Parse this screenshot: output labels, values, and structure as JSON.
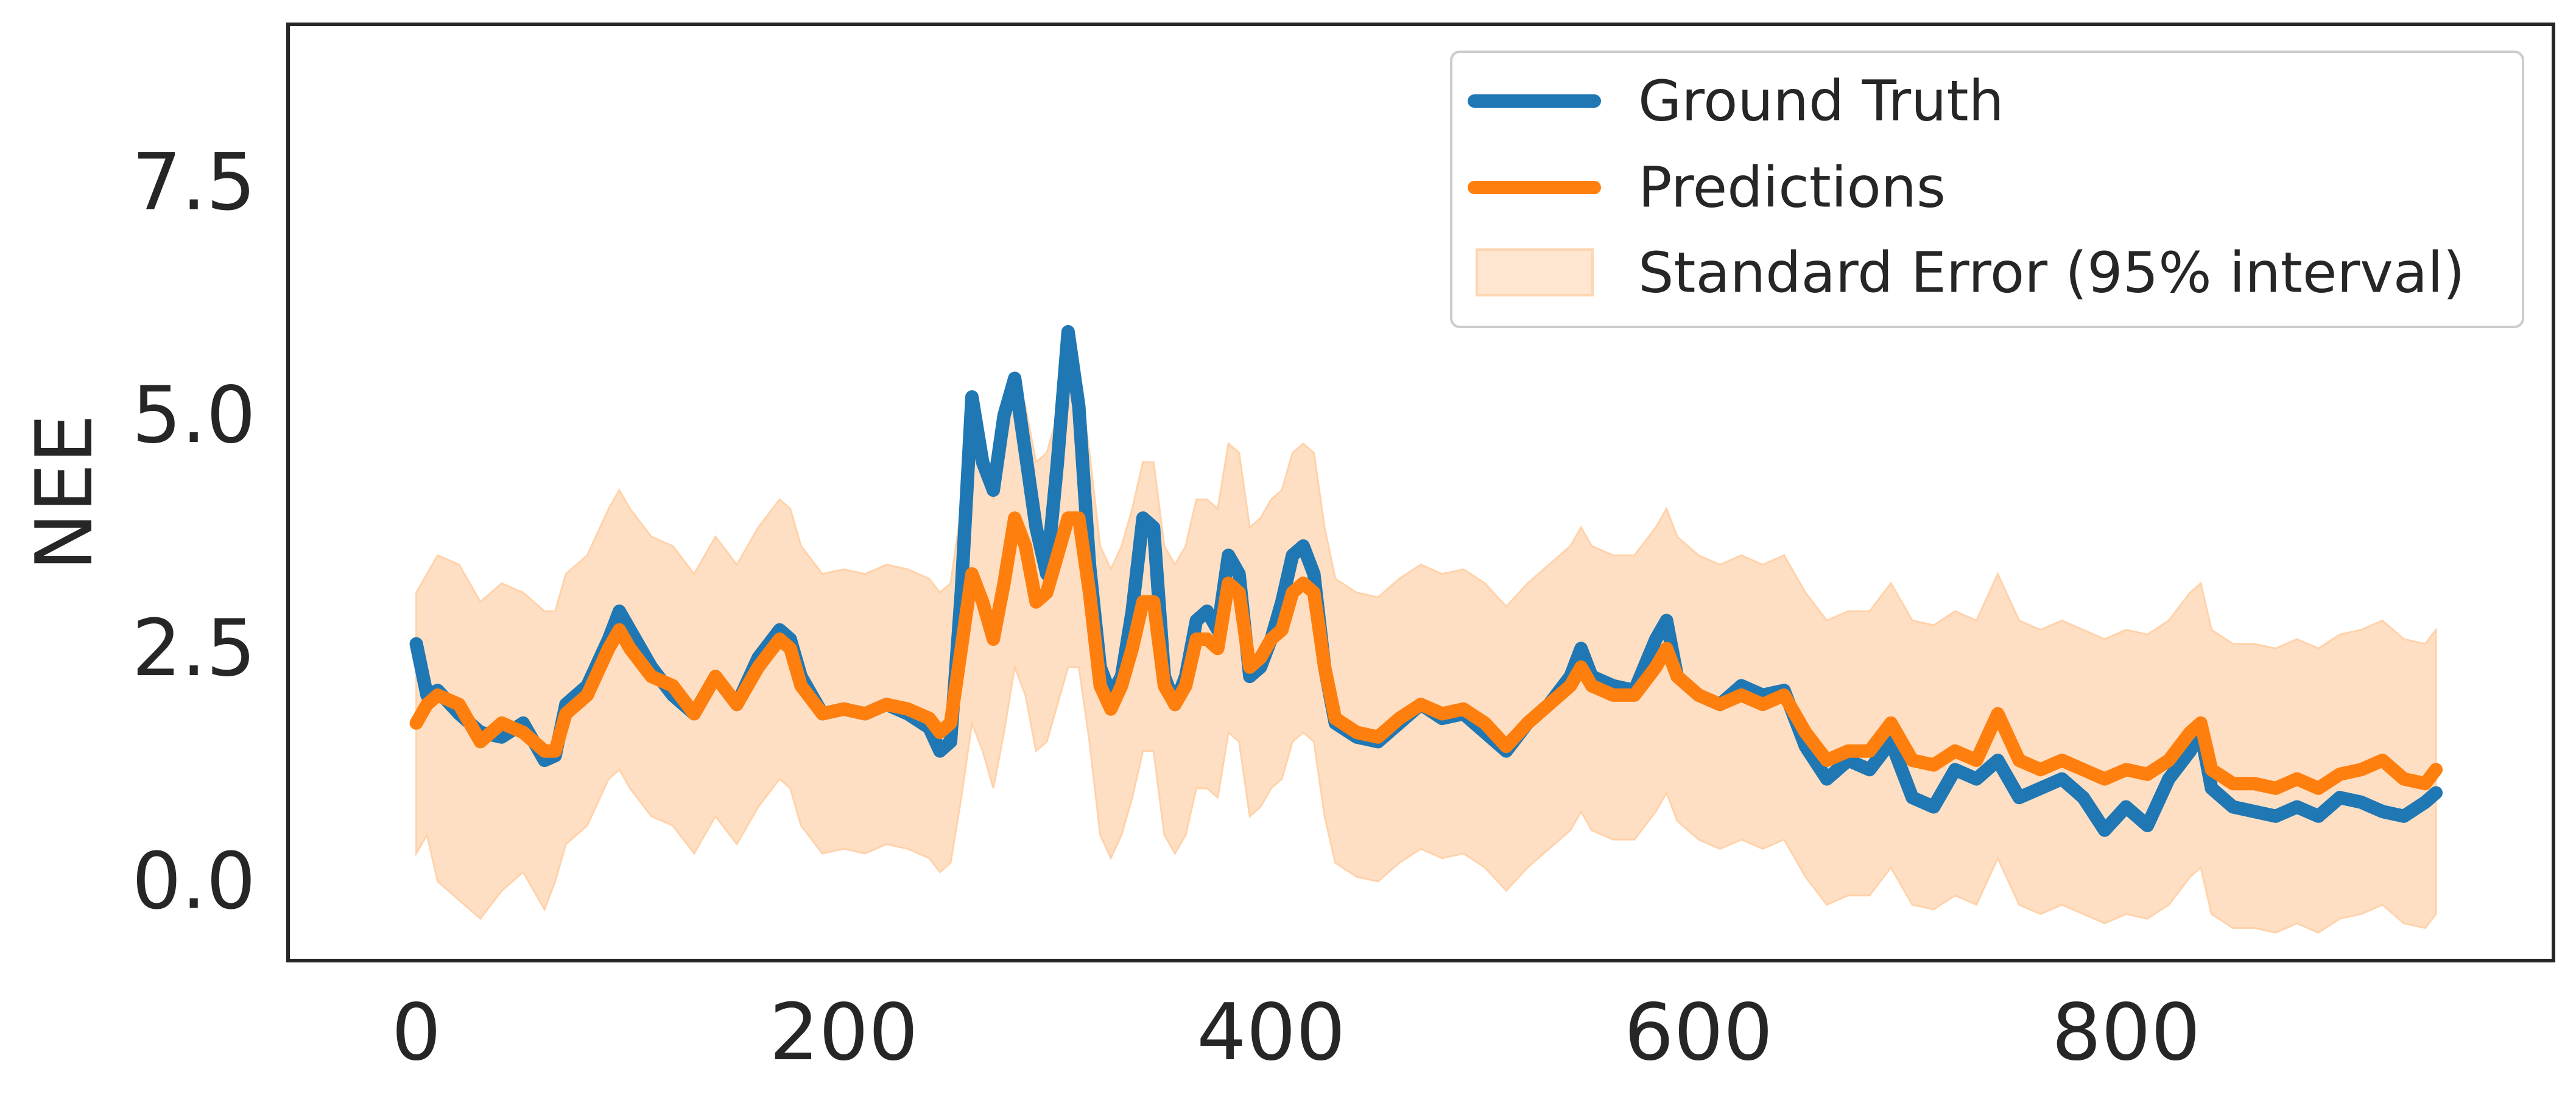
{
  "chart_data": {
    "type": "line",
    "title": "",
    "xlabel": "",
    "ylabel": "NEE",
    "xlim": [
      -60,
      1000
    ],
    "ylim": [
      -0.85,
      9.2
    ],
    "xticks": [
      0,
      200,
      400,
      600,
      800
    ],
    "xtick_labels": [
      "0",
      "200",
      "400",
      "600",
      "800"
    ],
    "yticks": [
      0.0,
      2.5,
      5.0,
      7.5
    ],
    "ytick_labels": [
      "0.0",
      "2.5",
      "5.0",
      "7.5"
    ],
    "grid": false,
    "legend_position": "top-right",
    "colors": {
      "ground_truth": "#1f77b4",
      "predictions": "#ff7f0e",
      "interval_fill": "#ffd2aa",
      "axes": "#262626"
    },
    "series": [
      {
        "name": "Ground Truth",
        "x": [
          0,
          5,
          10,
          20,
          30,
          40,
          50,
          60,
          65,
          70,
          80,
          90,
          95,
          100,
          110,
          120,
          130,
          140,
          150,
          160,
          170,
          175,
          180,
          190,
          200,
          210,
          220,
          230,
          240,
          245,
          250,
          255,
          260,
          265,
          270,
          275,
          280,
          285,
          290,
          295,
          300,
          305,
          310,
          315,
          320,
          325,
          330,
          335,
          340,
          345,
          350,
          355,
          360,
          365,
          370,
          375,
          380,
          385,
          390,
          395,
          400,
          405,
          410,
          415,
          420,
          425,
          430,
          440,
          450,
          460,
          470,
          480,
          490,
          500,
          510,
          520,
          530,
          540,
          545,
          550,
          560,
          570,
          580,
          585,
          590,
          600,
          610,
          620,
          630,
          640,
          650,
          660,
          670,
          680,
          690,
          700,
          710,
          720,
          730,
          740,
          750,
          760,
          770,
          780,
          790,
          800,
          810,
          820,
          830,
          835,
          840,
          850,
          860,
          870,
          880,
          890,
          900,
          910,
          920,
          930,
          940,
          945
        ],
        "y": [
          2.55,
          2.0,
          2.05,
          1.8,
          1.6,
          1.55,
          1.7,
          1.3,
          1.35,
          1.9,
          2.1,
          2.6,
          2.9,
          2.7,
          2.3,
          2.0,
          1.8,
          2.2,
          1.9,
          2.4,
          2.7,
          2.6,
          2.2,
          1.8,
          1.85,
          1.8,
          1.9,
          1.8,
          1.65,
          1.4,
          1.5,
          3.1,
          5.2,
          4.5,
          4.2,
          5.0,
          5.4,
          4.6,
          3.8,
          3.3,
          4.5,
          5.9,
          5.1,
          3.4,
          2.3,
          2.0,
          2.2,
          2.9,
          3.9,
          3.8,
          2.2,
          1.9,
          2.2,
          2.8,
          2.9,
          2.7,
          3.5,
          3.3,
          2.2,
          2.3,
          2.6,
          3.0,
          3.5,
          3.6,
          3.3,
          2.3,
          1.7,
          1.55,
          1.5,
          1.7,
          1.9,
          1.75,
          1.8,
          1.6,
          1.4,
          1.7,
          1.9,
          2.2,
          2.5,
          2.2,
          2.1,
          2.05,
          2.6,
          2.8,
          2.2,
          2.0,
          1.9,
          2.1,
          2.0,
          2.05,
          1.45,
          1.1,
          1.3,
          1.2,
          1.5,
          0.9,
          0.8,
          1.2,
          1.1,
          1.3,
          0.9,
          1.0,
          1.1,
          0.9,
          0.55,
          0.8,
          0.6,
          1.1,
          1.4,
          1.6,
          1.0,
          0.8,
          0.75,
          0.7,
          0.8,
          0.7,
          0.9,
          0.85,
          0.75,
          0.7,
          0.85,
          0.95
        ]
      },
      {
        "name": "Predictions",
        "x": [
          0,
          5,
          10,
          20,
          30,
          40,
          50,
          60,
          65,
          70,
          80,
          90,
          95,
          100,
          110,
          120,
          130,
          140,
          150,
          160,
          170,
          175,
          180,
          190,
          200,
          210,
          220,
          230,
          240,
          245,
          250,
          255,
          260,
          265,
          270,
          275,
          280,
          285,
          290,
          295,
          300,
          305,
          310,
          315,
          320,
          325,
          330,
          335,
          340,
          345,
          350,
          355,
          360,
          365,
          370,
          375,
          380,
          385,
          390,
          395,
          400,
          405,
          410,
          415,
          420,
          425,
          430,
          440,
          450,
          460,
          470,
          480,
          490,
          500,
          510,
          520,
          530,
          540,
          545,
          550,
          560,
          570,
          580,
          585,
          590,
          600,
          610,
          620,
          630,
          640,
          650,
          660,
          670,
          680,
          690,
          700,
          710,
          720,
          730,
          740,
          750,
          760,
          770,
          780,
          790,
          800,
          810,
          820,
          830,
          835,
          840,
          850,
          860,
          870,
          880,
          890,
          900,
          910,
          920,
          930,
          940,
          945
        ],
        "y": [
          1.7,
          1.9,
          2.0,
          1.9,
          1.5,
          1.7,
          1.6,
          1.4,
          1.4,
          1.8,
          2.0,
          2.5,
          2.7,
          2.5,
          2.2,
          2.1,
          1.8,
          2.2,
          1.9,
          2.3,
          2.6,
          2.5,
          2.1,
          1.8,
          1.85,
          1.8,
          1.9,
          1.85,
          1.75,
          1.6,
          1.7,
          2.5,
          3.3,
          3.0,
          2.6,
          3.2,
          3.9,
          3.6,
          3.0,
          3.1,
          3.5,
          3.9,
          3.9,
          3.1,
          2.1,
          1.85,
          2.1,
          2.5,
          3.0,
          3.0,
          2.1,
          1.9,
          2.1,
          2.6,
          2.6,
          2.5,
          3.2,
          3.1,
          2.3,
          2.4,
          2.6,
          2.7,
          3.1,
          3.2,
          3.1,
          2.3,
          1.75,
          1.6,
          1.55,
          1.75,
          1.9,
          1.8,
          1.85,
          1.7,
          1.45,
          1.7,
          1.9,
          2.1,
          2.3,
          2.1,
          2.0,
          2.0,
          2.3,
          2.5,
          2.2,
          2.0,
          1.9,
          2.0,
          1.9,
          2.0,
          1.6,
          1.3,
          1.4,
          1.4,
          1.7,
          1.3,
          1.25,
          1.4,
          1.3,
          1.8,
          1.3,
          1.2,
          1.3,
          1.2,
          1.1,
          1.2,
          1.15,
          1.3,
          1.6,
          1.7,
          1.2,
          1.05,
          1.05,
          1.0,
          1.1,
          1.0,
          1.15,
          1.2,
          1.3,
          1.1,
          1.05,
          1.2
        ]
      }
    ],
    "interval": {
      "name": "Standard Error (95% interval)",
      "x": [
        0,
        5,
        10,
        20,
        30,
        40,
        50,
        60,
        65,
        70,
        80,
        90,
        95,
        100,
        110,
        120,
        130,
        140,
        150,
        160,
        170,
        175,
        180,
        190,
        200,
        210,
        220,
        230,
        240,
        245,
        250,
        255,
        260,
        265,
        270,
        275,
        280,
        285,
        290,
        295,
        300,
        305,
        310,
        315,
        320,
        325,
        330,
        335,
        340,
        345,
        350,
        355,
        360,
        365,
        370,
        375,
        380,
        385,
        390,
        395,
        400,
        405,
        410,
        415,
        420,
        425,
        430,
        440,
        450,
        460,
        470,
        480,
        490,
        500,
        510,
        520,
        530,
        540,
        545,
        550,
        560,
        570,
        580,
        585,
        590,
        600,
        610,
        620,
        630,
        640,
        650,
        660,
        670,
        680,
        690,
        700,
        710,
        720,
        730,
        740,
        750,
        760,
        770,
        780,
        790,
        800,
        810,
        820,
        830,
        835,
        840,
        850,
        860,
        870,
        880,
        890,
        900,
        910,
        920,
        930,
        940,
        945
      ],
      "lower": [
        0.3,
        0.5,
        0.0,
        -0.2,
        -0.4,
        -0.1,
        0.1,
        -0.3,
        0.0,
        0.4,
        0.6,
        1.1,
        1.2,
        1.0,
        0.7,
        0.6,
        0.3,
        0.7,
        0.4,
        0.8,
        1.1,
        1.0,
        0.6,
        0.3,
        0.35,
        0.3,
        0.4,
        0.35,
        0.25,
        0.1,
        0.2,
        0.9,
        1.7,
        1.4,
        1.0,
        1.6,
        2.3,
        2.0,
        1.4,
        1.5,
        1.9,
        2.3,
        2.3,
        1.5,
        0.5,
        0.25,
        0.5,
        0.9,
        1.4,
        1.4,
        0.5,
        0.3,
        0.5,
        1.0,
        1.0,
        0.9,
        1.6,
        1.5,
        0.7,
        0.8,
        1.0,
        1.1,
        1.5,
        1.6,
        1.5,
        0.7,
        0.2,
        0.05,
        0.0,
        0.2,
        0.35,
        0.25,
        0.3,
        0.15,
        -0.1,
        0.15,
        0.35,
        0.55,
        0.75,
        0.55,
        0.45,
        0.45,
        0.75,
        0.95,
        0.65,
        0.45,
        0.35,
        0.45,
        0.35,
        0.45,
        0.05,
        -0.25,
        -0.15,
        -0.15,
        0.15,
        -0.25,
        -0.3,
        -0.15,
        -0.25,
        0.25,
        -0.25,
        -0.35,
        -0.25,
        -0.35,
        -0.45,
        -0.35,
        -0.4,
        -0.25,
        0.05,
        0.15,
        -0.35,
        -0.5,
        -0.5,
        -0.55,
        -0.45,
        -0.55,
        -0.4,
        -0.35,
        -0.25,
        -0.45,
        -0.5,
        -0.35
      ],
      "upper": [
        3.1,
        3.3,
        3.5,
        3.4,
        3.0,
        3.2,
        3.1,
        2.9,
        2.9,
        3.3,
        3.5,
        4.0,
        4.2,
        4.0,
        3.7,
        3.6,
        3.3,
        3.7,
        3.4,
        3.8,
        4.1,
        4.0,
        3.6,
        3.3,
        3.35,
        3.3,
        3.4,
        3.35,
        3.25,
        3.1,
        3.2,
        4.0,
        4.8,
        4.5,
        4.1,
        4.7,
        5.4,
        5.1,
        4.5,
        4.6,
        5.0,
        5.4,
        5.4,
        4.6,
        3.6,
        3.35,
        3.6,
        4.0,
        4.5,
        4.5,
        3.6,
        3.4,
        3.6,
        4.1,
        4.1,
        4.0,
        4.7,
        4.6,
        3.8,
        3.9,
        4.1,
        4.2,
        4.6,
        4.7,
        4.6,
        3.8,
        3.25,
        3.1,
        3.05,
        3.25,
        3.4,
        3.3,
        3.35,
        3.2,
        2.95,
        3.2,
        3.4,
        3.6,
        3.8,
        3.6,
        3.5,
        3.5,
        3.8,
        4.0,
        3.7,
        3.5,
        3.4,
        3.5,
        3.4,
        3.5,
        3.1,
        2.8,
        2.9,
        2.9,
        3.2,
        2.8,
        2.75,
        2.9,
        2.8,
        3.3,
        2.8,
        2.7,
        2.8,
        2.7,
        2.6,
        2.7,
        2.65,
        2.8,
        3.1,
        3.2,
        2.7,
        2.55,
        2.55,
        2.5,
        2.6,
        2.5,
        2.65,
        2.7,
        2.8,
        2.6,
        2.55,
        2.7
      ]
    }
  }
}
